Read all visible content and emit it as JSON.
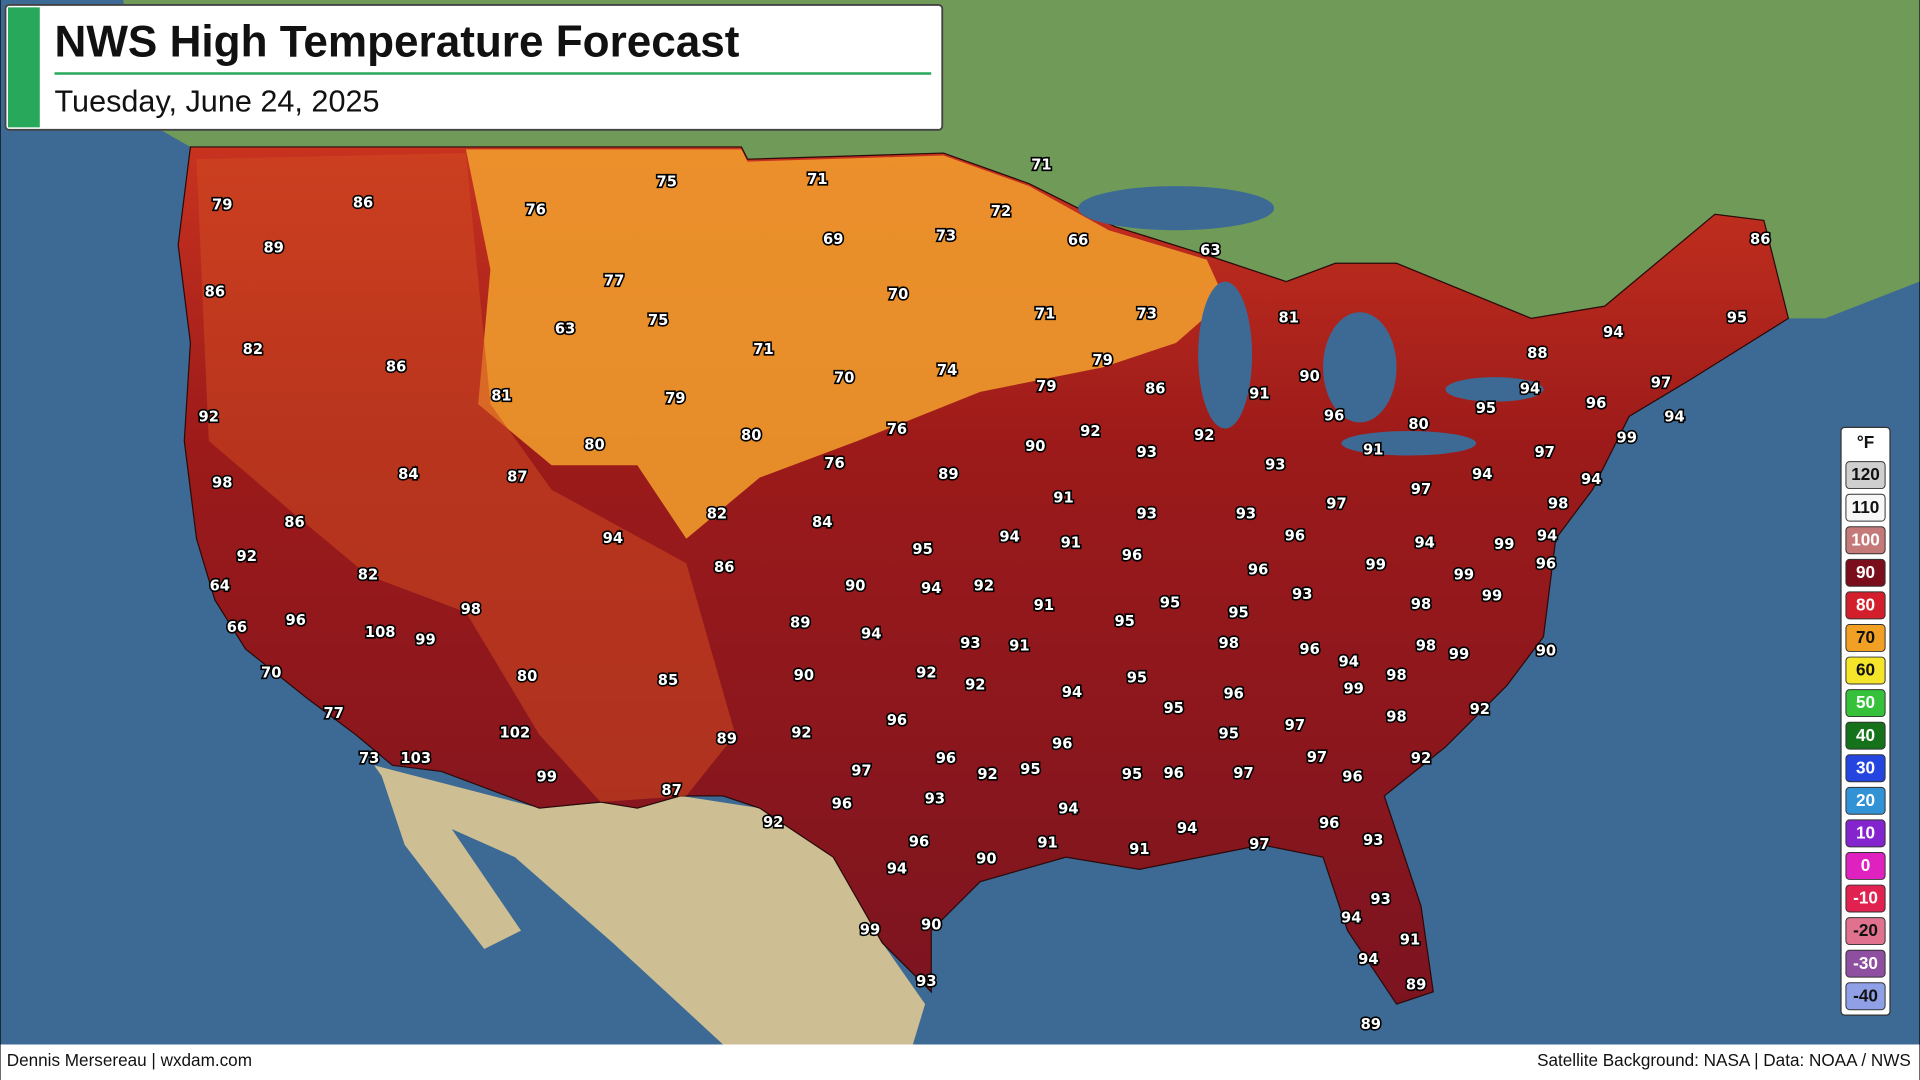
{
  "header": {
    "title": "NWS High Temperature Forecast",
    "subtitle": "Tuesday, June 24, 2025"
  },
  "temperatures": [
    79,
    86,
    89,
    86,
    82,
    86,
    81,
    92,
    84,
    87,
    98,
    86,
    92,
    82,
    64,
    98,
    96,
    66,
    108,
    99,
    70,
    80,
    77,
    102,
    73,
    103,
    99,
    76,
    75,
    77,
    63,
    75,
    79,
    80,
    94,
    82,
    86,
    85,
    89,
    87,
    71,
    69,
    73,
    72,
    71,
    66,
    63,
    70,
    71,
    70,
    74,
    71,
    73,
    79,
    86,
    81,
    90,
    91,
    79,
    92,
    92,
    96,
    80,
    76,
    76,
    89,
    90,
    93,
    93,
    91,
    80,
    84,
    95,
    94,
    91,
    91,
    93,
    93,
    97,
    97,
    94,
    97,
    96,
    96,
    96,
    99,
    94,
    99,
    94,
    98,
    94,
    99,
    96,
    94,
    97,
    95,
    94,
    88,
    94,
    95,
    86,
    90,
    94,
    92,
    91,
    95,
    95,
    95,
    93,
    99,
    99,
    96,
    98,
    89,
    94,
    93,
    91,
    98,
    96,
    94,
    98,
    99,
    90,
    98,
    99,
    92,
    92,
    90,
    94,
    95,
    95,
    96,
    95,
    97,
    98,
    92,
    92,
    96,
    96,
    92,
    97,
    96,
    92,
    95,
    95,
    96,
    97,
    97,
    96,
    96,
    93,
    94,
    92,
    96,
    90,
    91,
    91,
    94,
    97,
    96,
    93,
    94,
    99,
    90,
    93,
    94,
    91,
    94,
    93,
    89,
    89
  ],
  "legend": {
    "unit": "°F",
    "items": [
      {
        "value": 120,
        "color": "#cfcfcf"
      },
      {
        "value": 110,
        "color": "#f7f7f7"
      },
      {
        "value": 100,
        "color": "#c57a7a"
      },
      {
        "value": 90,
        "color": "#7a0e1c"
      },
      {
        "value": 80,
        "color": "#d21f2b"
      },
      {
        "value": 70,
        "color": "#f2a024"
      },
      {
        "value": 60,
        "color": "#f4e42a"
      },
      {
        "value": 50,
        "color": "#35c23a"
      },
      {
        "value": 40,
        "color": "#15721b"
      },
      {
        "value": 30,
        "color": "#2445e0"
      },
      {
        "value": 20,
        "color": "#3292d6"
      },
      {
        "value": 10,
        "color": "#8424cf"
      },
      {
        "value": 0,
        "color": "#df21bf"
      },
      {
        "value": -10,
        "color": "#e1214f"
      },
      {
        "value": -20,
        "color": "#e0728f"
      },
      {
        "value": -30,
        "color": "#8f4fa0"
      },
      {
        "value": -40,
        "color": "#8fa0e6"
      }
    ]
  },
  "footer": {
    "credit": "Dennis Mersereau | wxdam.com",
    "source": "Satellite Background: NASA | Data: NOAA / NWS"
  }
}
